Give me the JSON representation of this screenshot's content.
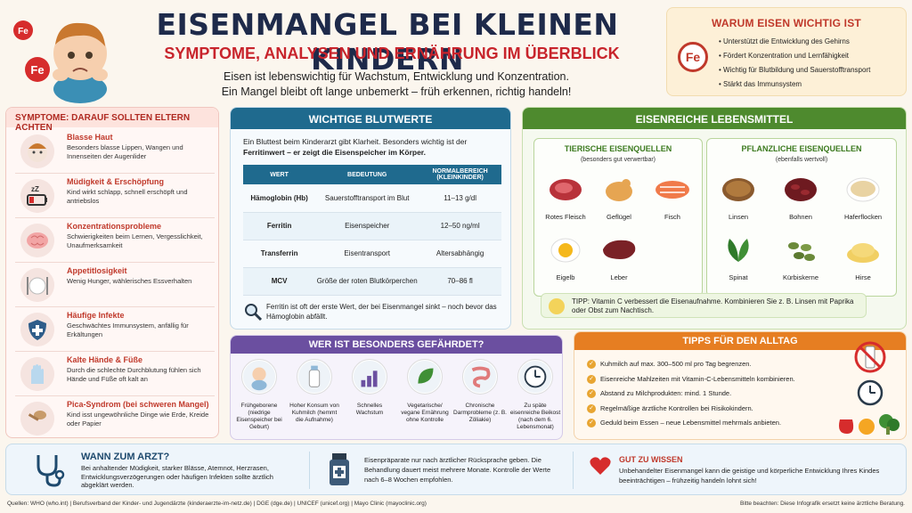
{
  "header": {
    "title": "EISENMANGEL BEI KLEINEN KINDERN",
    "subtitle": "SYMPTOME, ANALYSEN UND ERNÄHRUNG IM ÜBERBLICK",
    "intro_1": "Eisen ist lebenswichtig für Wachstum, Entwicklung und Konzentration.",
    "intro_2": "Ein Mangel bleibt oft lange unbemerkt – früh erkennen, richtig handeln!",
    "fe_badge": "Fe"
  },
  "why": {
    "title": "WARUM EISEN WICHTIG IST",
    "fe": "Fe",
    "items": [
      "Unterstützt die Entwicklung des Gehirns",
      "Fördert Konzentration und Lernfähigkeit",
      "Wichtig für Blutbildung und Sauerstofftransport",
      "Stärkt das Immunsystem"
    ]
  },
  "symptoms": {
    "title": "SYMPTOME: DARAUF SOLLTEN ELTERN ACHTEN",
    "items": [
      {
        "title": "Blasse Haut",
        "desc": "Besonders blasse Lippen, Wangen und Innenseiten der Augenlider",
        "icon": "child-face-icon"
      },
      {
        "title": "Müdigkeit & Erschöpfung",
        "desc": "Kind wirkt schlapp, schnell erschöpft und antriebslos",
        "icon": "low-battery-icon"
      },
      {
        "title": "Konzentrationsprobleme",
        "desc": "Schwierigkeiten beim Lernen, Vergesslichkeit, Unaufmerksamkeit",
        "icon": "brain-icon"
      },
      {
        "title": "Appetitlosigkeit",
        "desc": "Wenig Hunger, wählerisches Essverhalten",
        "icon": "cutlery-icon"
      },
      {
        "title": "Häufige Infekte",
        "desc": "Geschwächtes Immunsystem, anfällig für Erkältungen",
        "icon": "shield-icon"
      },
      {
        "title": "Kalte Hände & Füße",
        "desc": "Durch die schlechte Durchblutung fühlen sich Hände und Füße oft kalt an",
        "icon": "hand-icon"
      },
      {
        "title": "Pica-Syndrom (bei schweren Mangel)",
        "desc": "Kind isst ungewöhnliche Dinge wie Erde, Kreide oder Papier",
        "icon": "spoon-icon"
      }
    ]
  },
  "blood": {
    "title": "WICHTIGE BLUTWERTE",
    "intro_a": "Ein Bluttest beim Kinderarzt gibt Klarheit. Besonders wichtig ist der ",
    "intro_b": "Ferritinwert – er zeigt die Eisenspeicher im Körper.",
    "columns": [
      "WERT",
      "BEDEUTUNG",
      "NORMALBEREICH (KLEINKINDER)"
    ],
    "rows": [
      [
        "Hämoglobin (Hb)",
        "Sauerstofftransport im Blut",
        "11–13 g/dl"
      ],
      [
        "Ferritin",
        "Eisenspeicher",
        "12–50 ng/ml"
      ],
      [
        "Transferrin",
        "Eisentransport",
        "Altersabhängig"
      ],
      [
        "MCV",
        "Größe der roten Blutkörperchen",
        "70–86 fl"
      ]
    ],
    "note": "Ferritin ist oft der erste Wert, der bei Eisenmangel sinkt – noch bevor das Hämoglobin abfällt."
  },
  "food": {
    "title": "EISENREICHE LEBENSMITTEL",
    "animal": {
      "title": "TIERISCHE EISENQUELLEN",
      "sub": "(besonders gut verwertbar)",
      "items": [
        "Rotes Fleisch",
        "Geflügel",
        "Fisch",
        "Eigelb",
        "Leber"
      ]
    },
    "plant": {
      "title": "PFLANZLICHE EISENQUELLEN",
      "sub": "(ebenfalls wertvoll)",
      "items": [
        "Linsen",
        "Bohnen",
        "Haferflocken",
        "Spinat",
        "Kürbiskerne",
        "Hirse"
      ]
    },
    "tip": "TIPP: Vitamin C verbessert die Eisenaufnahme. Kombinieren Sie z. B. Linsen mit Paprika oder Obst zum Nachtisch."
  },
  "risk": {
    "title": "WER IST BESONDERS GEFÄHRDET?",
    "items": [
      "Frühgeborene (niedrige Eisenspeicher bei Geburt)",
      "Hoher Konsum von Kuhmilch (hemmt die Aufnahme)",
      "Schnelles Wachstum",
      "Vegetarische/ vegane Ernährung ohne Kontrolle",
      "Chronische Darmprobleme (z. B. Zöliakie)",
      "Zu späte eisenreiche Beikost (nach dem 6. Lebensmonat)"
    ]
  },
  "tips": {
    "title": "TIPPS FÜR DEN ALLTAG",
    "items": [
      "Kuhmilch auf max. 300–500 ml pro Tag begrenzen.",
      "Eisenreiche Mahlzeiten mit Vitamin-C-Lebensmitteln kombinieren.",
      "Abstand zu Milchprodukten: mind. 1 Stunde.",
      "Regelmäßige ärztliche Kontrollen bei Risikokindern.",
      "Geduld beim Essen – neue Lebensmittel mehrmals anbieten."
    ]
  },
  "doctor": {
    "title": "WANN ZUM ARZT?",
    "desc": "Bei anhaltender Müdigkeit, starker Blässe, Atemnot, Herzrasen, Entwicklungsverzögerungen oder häufigen Infekten sollte ärztlich abgeklärt werden.",
    "med": "Eisenpräparate nur nach ärztlicher Rücksprache geben. Die Behandlung dauert meist mehrere Monate. Kontrolle der Werte nach 6–8 Wochen empfohlen.",
    "good_title": "GUT ZU WISSEN",
    "good_desc": "Unbehandelter Eisenmangel kann die geistige und körperliche Entwicklung Ihres Kindes beeinträchtigen – frühzeitig handeln lohnt sich!"
  },
  "footer": {
    "sources": "Quellen: WHO (who.int) | Berufsverband der Kinder- und Jugendärzte (kinderaerzte-im-netz.de) | DGE (dge.de) | UNICEF (unicef.org) | Mayo Clinic (mayoclinic.org)",
    "disclaimer": "Bitte beachten: Diese Infografik ersetzt keine ärztliche Beratung."
  }
}
